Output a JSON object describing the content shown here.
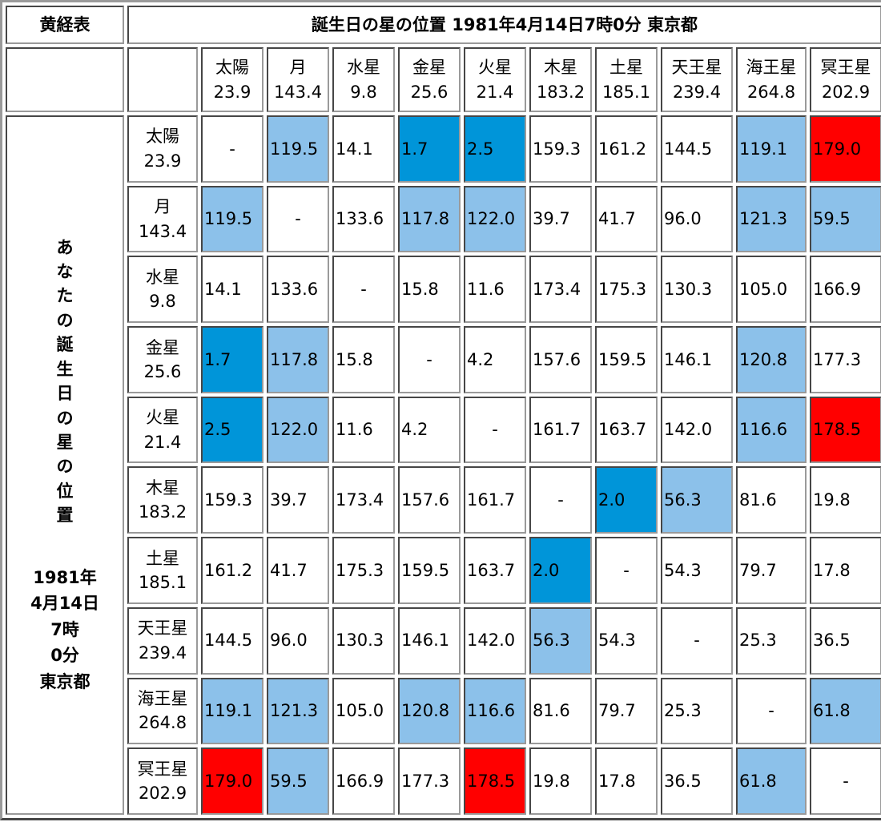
{
  "header": {
    "table_label": "黄経表",
    "main_title": "誕生日の星の位置 1981年4月14日7時0分 東京都"
  },
  "side_label": {
    "vertical_chars": [
      "あ",
      "な",
      "た",
      "の",
      "誕",
      "生",
      "日",
      "の",
      "星",
      "の",
      "位",
      "置"
    ],
    "date_lines": [
      "1981年",
      "4月14日",
      "7時",
      "0分",
      "東京都"
    ]
  },
  "colors": {
    "light_blue": "#8cc1ea",
    "blue": "#0095d9",
    "red": "#ff0000",
    "border": "#9a9a9a"
  },
  "planets": [
    {
      "name": "太陽",
      "longitude": "23.9"
    },
    {
      "name": "月",
      "longitude": "143.4"
    },
    {
      "name": "水星",
      "longitude": "9.8"
    },
    {
      "name": "金星",
      "longitude": "25.6"
    },
    {
      "name": "火星",
      "longitude": "21.4"
    },
    {
      "name": "木星",
      "longitude": "183.2"
    },
    {
      "name": "土星",
      "longitude": "185.1"
    },
    {
      "name": "天王星",
      "longitude": "239.4"
    },
    {
      "name": "海王星",
      "longitude": "264.8"
    },
    {
      "name": "冥王星",
      "longitude": "202.9"
    }
  ],
  "rows": [
    {
      "cells": [
        {
          "v": "-",
          "c": "self"
        },
        {
          "v": "119.5",
          "c": "lb"
        },
        {
          "v": "14.1",
          "c": ""
        },
        {
          "v": "1.7",
          "c": "b"
        },
        {
          "v": "2.5",
          "c": "b"
        },
        {
          "v": "159.3",
          "c": ""
        },
        {
          "v": "161.2",
          "c": ""
        },
        {
          "v": "144.5",
          "c": ""
        },
        {
          "v": "119.1",
          "c": "lb"
        },
        {
          "v": "179.0",
          "c": "r"
        }
      ]
    },
    {
      "cells": [
        {
          "v": "119.5",
          "c": "lb"
        },
        {
          "v": "-",
          "c": "self"
        },
        {
          "v": "133.6",
          "c": ""
        },
        {
          "v": "117.8",
          "c": "lb"
        },
        {
          "v": "122.0",
          "c": "lb"
        },
        {
          "v": "39.7",
          "c": ""
        },
        {
          "v": "41.7",
          "c": ""
        },
        {
          "v": "96.0",
          "c": ""
        },
        {
          "v": "121.3",
          "c": "lb"
        },
        {
          "v": "59.5",
          "c": "lb"
        }
      ]
    },
    {
      "cells": [
        {
          "v": "14.1",
          "c": ""
        },
        {
          "v": "133.6",
          "c": ""
        },
        {
          "v": "-",
          "c": "self"
        },
        {
          "v": "15.8",
          "c": ""
        },
        {
          "v": "11.6",
          "c": ""
        },
        {
          "v": "173.4",
          "c": ""
        },
        {
          "v": "175.3",
          "c": ""
        },
        {
          "v": "130.3",
          "c": ""
        },
        {
          "v": "105.0",
          "c": ""
        },
        {
          "v": "166.9",
          "c": ""
        }
      ]
    },
    {
      "cells": [
        {
          "v": "1.7",
          "c": "b"
        },
        {
          "v": "117.8",
          "c": "lb"
        },
        {
          "v": "15.8",
          "c": ""
        },
        {
          "v": "-",
          "c": "self"
        },
        {
          "v": "4.2",
          "c": ""
        },
        {
          "v": "157.6",
          "c": ""
        },
        {
          "v": "159.5",
          "c": ""
        },
        {
          "v": "146.1",
          "c": ""
        },
        {
          "v": "120.8",
          "c": "lb"
        },
        {
          "v": "177.3",
          "c": ""
        }
      ]
    },
    {
      "cells": [
        {
          "v": "2.5",
          "c": "b"
        },
        {
          "v": "122.0",
          "c": "lb"
        },
        {
          "v": "11.6",
          "c": ""
        },
        {
          "v": "4.2",
          "c": ""
        },
        {
          "v": "-",
          "c": "self"
        },
        {
          "v": "161.7",
          "c": ""
        },
        {
          "v": "163.7",
          "c": ""
        },
        {
          "v": "142.0",
          "c": ""
        },
        {
          "v": "116.6",
          "c": "lb"
        },
        {
          "v": "178.5",
          "c": "r"
        }
      ]
    },
    {
      "cells": [
        {
          "v": "159.3",
          "c": ""
        },
        {
          "v": "39.7",
          "c": ""
        },
        {
          "v": "173.4",
          "c": ""
        },
        {
          "v": "157.6",
          "c": ""
        },
        {
          "v": "161.7",
          "c": ""
        },
        {
          "v": "-",
          "c": "self"
        },
        {
          "v": "2.0",
          "c": "b"
        },
        {
          "v": "56.3",
          "c": "lb"
        },
        {
          "v": "81.6",
          "c": ""
        },
        {
          "v": "19.8",
          "c": ""
        }
      ]
    },
    {
      "cells": [
        {
          "v": "161.2",
          "c": ""
        },
        {
          "v": "41.7",
          "c": ""
        },
        {
          "v": "175.3",
          "c": ""
        },
        {
          "v": "159.5",
          "c": ""
        },
        {
          "v": "163.7",
          "c": ""
        },
        {
          "v": "2.0",
          "c": "b"
        },
        {
          "v": "-",
          "c": "self"
        },
        {
          "v": "54.3",
          "c": ""
        },
        {
          "v": "79.7",
          "c": ""
        },
        {
          "v": "17.8",
          "c": ""
        }
      ]
    },
    {
      "cells": [
        {
          "v": "144.5",
          "c": ""
        },
        {
          "v": "96.0",
          "c": ""
        },
        {
          "v": "130.3",
          "c": ""
        },
        {
          "v": "146.1",
          "c": ""
        },
        {
          "v": "142.0",
          "c": ""
        },
        {
          "v": "56.3",
          "c": "lb"
        },
        {
          "v": "54.3",
          "c": ""
        },
        {
          "v": "-",
          "c": "self"
        },
        {
          "v": "25.3",
          "c": ""
        },
        {
          "v": "36.5",
          "c": ""
        }
      ]
    },
    {
      "cells": [
        {
          "v": "119.1",
          "c": "lb"
        },
        {
          "v": "121.3",
          "c": "lb"
        },
        {
          "v": "105.0",
          "c": ""
        },
        {
          "v": "120.8",
          "c": "lb"
        },
        {
          "v": "116.6",
          "c": "lb"
        },
        {
          "v": "81.6",
          "c": ""
        },
        {
          "v": "79.7",
          "c": ""
        },
        {
          "v": "25.3",
          "c": ""
        },
        {
          "v": "-",
          "c": "self"
        },
        {
          "v": "61.8",
          "c": "lb"
        }
      ]
    },
    {
      "cells": [
        {
          "v": "179.0",
          "c": "r"
        },
        {
          "v": "59.5",
          "c": "lb"
        },
        {
          "v": "166.9",
          "c": ""
        },
        {
          "v": "177.3",
          "c": ""
        },
        {
          "v": "178.5",
          "c": "r"
        },
        {
          "v": "19.8",
          "c": ""
        },
        {
          "v": "17.8",
          "c": ""
        },
        {
          "v": "36.5",
          "c": ""
        },
        {
          "v": "61.8",
          "c": "lb"
        },
        {
          "v": "-",
          "c": "self"
        }
      ]
    }
  ]
}
